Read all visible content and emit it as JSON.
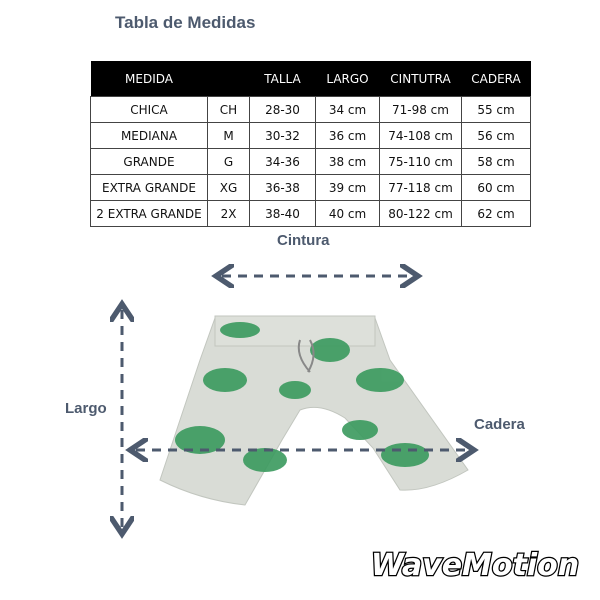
{
  "title": "Tabla de Medidas",
  "table": {
    "headers": [
      "MEDIDA",
      "",
      "TALLA",
      "LARGO",
      "CINTUTRA",
      "CADERA"
    ],
    "rows": [
      [
        "CHICA",
        "CH",
        "28-30",
        "34 cm",
        "71-98 cm",
        "55 cm"
      ],
      [
        "MEDIANA",
        "M",
        "30-32",
        "36 cm",
        "74-108 cm",
        "56 cm"
      ],
      [
        "GRANDE",
        "G",
        "34-36",
        "38 cm",
        "75-110 cm",
        "58 cm"
      ],
      [
        "EXTRA GRANDE",
        "XG",
        "36-38",
        "39 cm",
        "77-118 cm",
        "60 cm"
      ],
      [
        "2 EXTRA GRANDE",
        "2X",
        "38-40",
        "40 cm",
        "80-122 cm",
        "62 cm"
      ]
    ]
  },
  "labels": {
    "cintura": "Cintura",
    "largo": "Largo",
    "cadera": "Cadera"
  },
  "logo": "WaveMotion",
  "colors": {
    "arrow": "#4d5a6e",
    "shorts_base": "#d9dcd6",
    "palm": "#3a9a5e"
  }
}
